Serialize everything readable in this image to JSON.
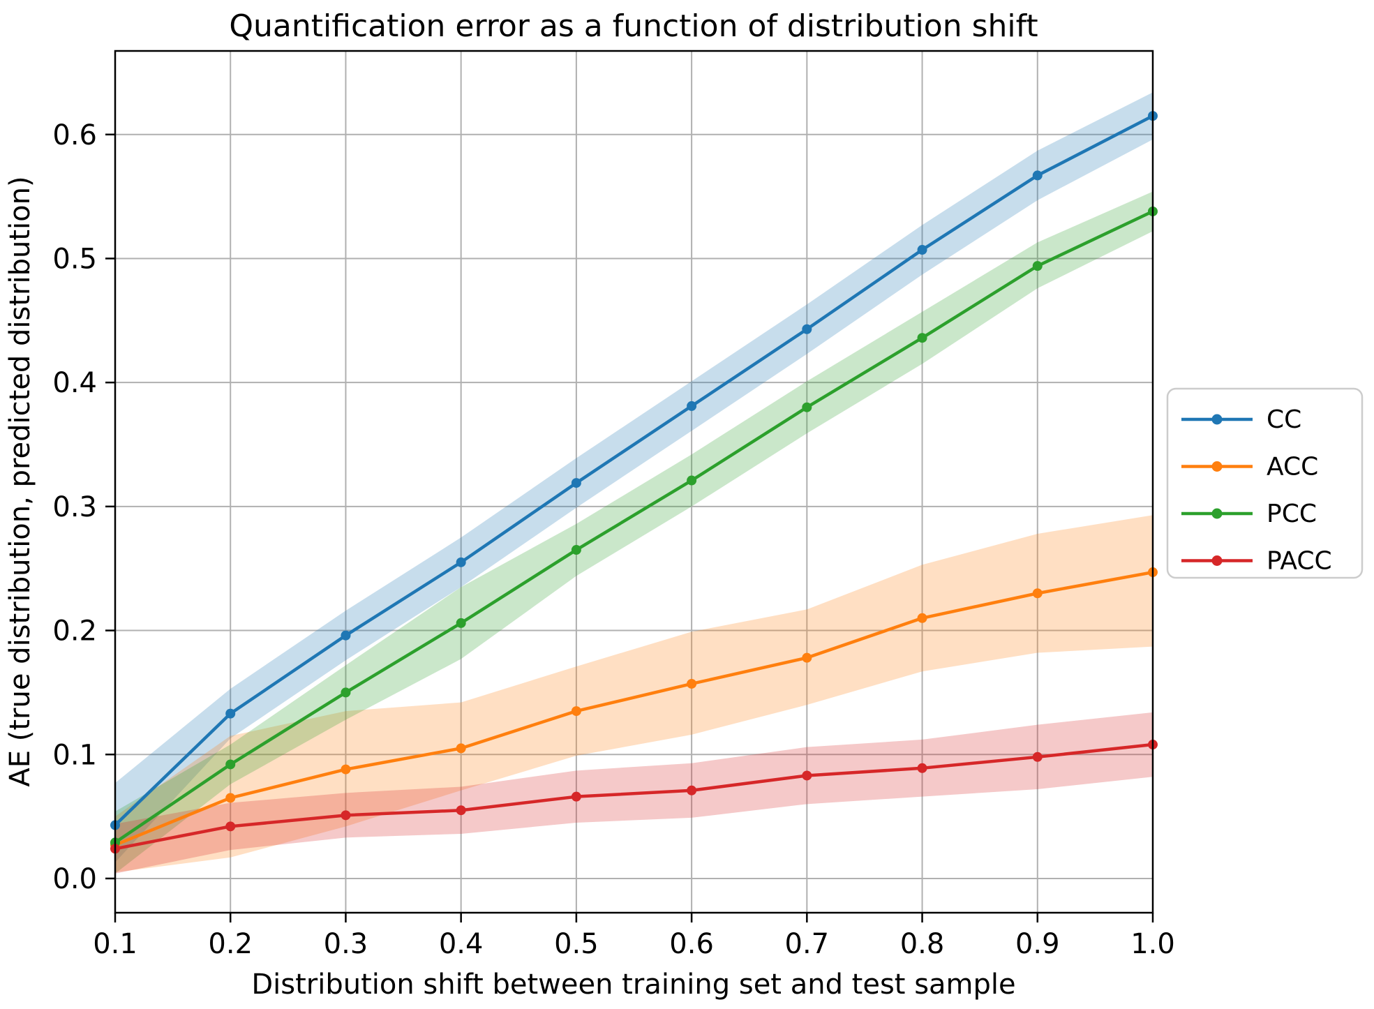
{
  "chart_data": {
    "type": "line",
    "title": "Quantification error as a function of distribution shift",
    "xlabel": "Distribution shift between training set and test sample",
    "ylabel": "AE (true distribution, predicted distribution)",
    "x": [
      0.1,
      0.2,
      0.3,
      0.4,
      0.5,
      0.6,
      0.7,
      0.8,
      0.9,
      1.0
    ],
    "xlim": [
      0.1,
      1.0
    ],
    "ylim": [
      -0.0276,
      0.6674
    ],
    "xtick_labels": [
      "0.1",
      "0.2",
      "0.3",
      "0.4",
      "0.5",
      "0.6",
      "0.7",
      "0.8",
      "0.9",
      "1.0"
    ],
    "ytick_values": [
      0.0,
      0.1,
      0.2,
      0.3,
      0.4,
      0.5,
      0.6
    ],
    "ytick_labels": [
      "0.0",
      "0.1",
      "0.2",
      "0.3",
      "0.4",
      "0.5",
      "0.6"
    ],
    "grid": true,
    "legend_position": "right-outside",
    "band_alpha": 0.25,
    "grid_color": "#b0b0b0",
    "spine_color": "#000000",
    "background": "#ffffff",
    "series": [
      {
        "name": "CC",
        "color": "#1f77b4",
        "values": [
          0.043,
          0.133,
          0.196,
          0.255,
          0.319,
          0.381,
          0.443,
          0.507,
          0.567,
          0.615
        ],
        "lower": [
          0.013,
          0.113,
          0.176,
          0.235,
          0.299,
          0.361,
          0.423,
          0.487,
          0.547,
          0.596
        ],
        "upper": [
          0.077,
          0.153,
          0.216,
          0.275,
          0.339,
          0.401,
          0.463,
          0.527,
          0.587,
          0.634
        ]
      },
      {
        "name": "ACC",
        "color": "#ff7f0e",
        "values": [
          0.027,
          0.065,
          0.088,
          0.105,
          0.135,
          0.157,
          0.178,
          0.21,
          0.23,
          0.247
        ],
        "lower": [
          0.005,
          0.017,
          0.042,
          0.071,
          0.099,
          0.116,
          0.14,
          0.167,
          0.182,
          0.187
        ],
        "upper": [
          0.05,
          0.115,
          0.135,
          0.142,
          0.171,
          0.199,
          0.217,
          0.253,
          0.278,
          0.293
        ]
      },
      {
        "name": "PCC",
        "color": "#2ca02c",
        "values": [
          0.029,
          0.092,
          0.15,
          0.206,
          0.265,
          0.321,
          0.38,
          0.436,
          0.494,
          0.538
        ],
        "lower": [
          0.004,
          0.076,
          0.128,
          0.177,
          0.244,
          0.3,
          0.359,
          0.415,
          0.476,
          0.522
        ],
        "upper": [
          0.054,
          0.108,
          0.172,
          0.235,
          0.286,
          0.342,
          0.401,
          0.457,
          0.513,
          0.554
        ]
      },
      {
        "name": "PACC",
        "color": "#d62728",
        "values": [
          0.024,
          0.042,
          0.051,
          0.055,
          0.066,
          0.071,
          0.083,
          0.089,
          0.098,
          0.108
        ],
        "lower": [
          0.004,
          0.023,
          0.033,
          0.036,
          0.045,
          0.049,
          0.06,
          0.066,
          0.072,
          0.082
        ],
        "upper": [
          0.044,
          0.061,
          0.069,
          0.074,
          0.087,
          0.093,
          0.106,
          0.112,
          0.124,
          0.134
        ]
      }
    ]
  }
}
